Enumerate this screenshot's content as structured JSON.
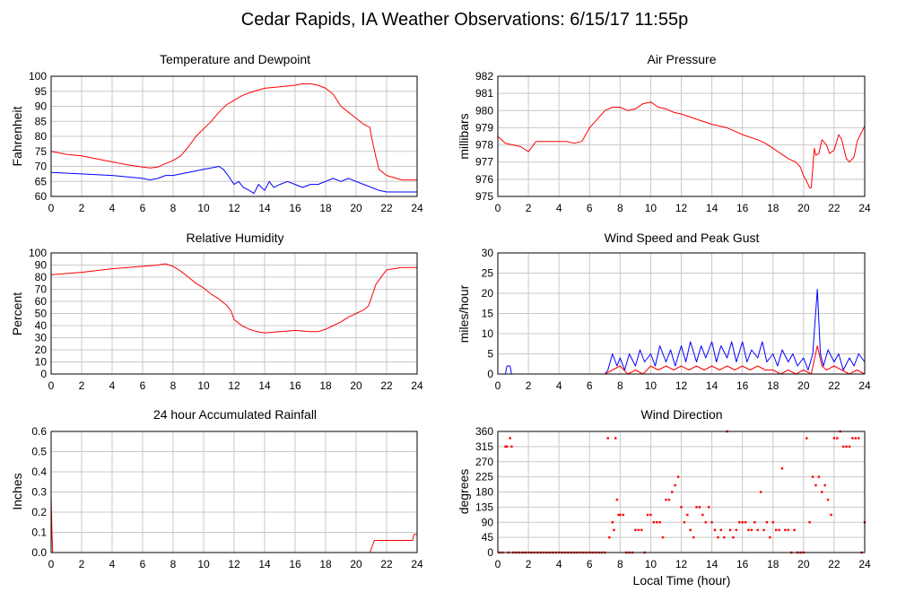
{
  "page_title": "Cedar Rapids, IA Weather Observations: 6/15/17 11:55p",
  "x_axis_label": "Local Time (hour)",
  "chart_data": [
    {
      "id": "temp",
      "type": "line",
      "title": "Temperature and Dewpoint",
      "ylabel": "Fahrenheit",
      "xlabel": "",
      "xlim": [
        0,
        24
      ],
      "ylim": [
        60,
        100
      ],
      "yticks": [
        60,
        65,
        70,
        75,
        80,
        85,
        90,
        95,
        100
      ],
      "xticks": [
        0,
        2,
        4,
        6,
        8,
        10,
        12,
        14,
        16,
        18,
        20,
        22,
        24
      ],
      "grid": true,
      "series": [
        {
          "color": "#ff0000",
          "x": [
            0,
            1,
            2,
            3,
            4,
            5,
            6,
            6.5,
            7,
            8,
            8.5,
            9,
            9.5,
            10,
            10.5,
            11,
            11.5,
            12,
            12.5,
            13,
            14,
            15,
            16,
            16.5,
            17,
            17.5,
            18,
            18.5,
            19,
            19.5,
            20,
            20.5,
            20.9,
            21,
            21.3,
            21.5,
            22,
            23,
            24
          ],
          "values": [
            75,
            74,
            73.5,
            72.5,
            71.5,
            70.5,
            69.8,
            69.5,
            69.8,
            72,
            73.5,
            76.5,
            80,
            82.5,
            85,
            88,
            90.5,
            92,
            93.5,
            94.5,
            96,
            96.5,
            97,
            97.5,
            97.5,
            97,
            96,
            94,
            90,
            88,
            86,
            84,
            83,
            80,
            73,
            69,
            67,
            65.5,
            65.5
          ]
        },
        {
          "color": "#0000ff",
          "x": [
            0,
            2,
            4,
            6,
            6.5,
            7,
            7.5,
            8,
            8.5,
            9,
            9.5,
            10,
            10.5,
            11,
            11.3,
            11.6,
            12,
            12.3,
            12.6,
            13,
            13.3,
            13.6,
            14,
            14.3,
            14.6,
            15,
            15.5,
            16,
            16.5,
            17,
            17.5,
            18,
            18.5,
            19,
            19.5,
            20,
            20.5,
            21,
            21.5,
            22,
            23,
            24
          ],
          "values": [
            68,
            67.5,
            67,
            66,
            65.5,
            66,
            67,
            67,
            67.5,
            68,
            68.5,
            69,
            69.5,
            70,
            69,
            67,
            64,
            65,
            63,
            62,
            61,
            64,
            62,
            65,
            63,
            64,
            65,
            64,
            63,
            64,
            64,
            65,
            66,
            65,
            66,
            65,
            64,
            63,
            62,
            61.5,
            61.5,
            61.5
          ]
        }
      ]
    },
    {
      "id": "pressure",
      "type": "line",
      "title": "Air Pressure",
      "ylabel": "millibars",
      "xlabel": "",
      "xlim": [
        0,
        24
      ],
      "ylim": [
        975,
        982
      ],
      "yticks": [
        975,
        976,
        977,
        978,
        979,
        980,
        981,
        982
      ],
      "xticks": [
        0,
        2,
        4,
        6,
        8,
        10,
        12,
        14,
        16,
        18,
        20,
        22,
        24
      ],
      "grid": true,
      "series": [
        {
          "color": "#ff0000",
          "x": [
            0,
            0.5,
            1,
            1.5,
            2,
            2.5,
            3,
            3.5,
            4,
            4.5,
            5,
            5.5,
            6,
            6.5,
            7,
            7.5,
            8,
            8.5,
            9,
            9.5,
            10,
            10.5,
            11,
            11.5,
            12,
            13,
            14,
            15,
            16,
            17,
            17.5,
            18,
            18.5,
            19,
            19.5,
            19.8,
            20,
            20.2,
            20.4,
            20.5,
            20.7,
            20.8,
            21,
            21.2,
            21.5,
            21.7,
            22,
            22.3,
            22.5,
            22.8,
            23,
            23.3,
            23.5,
            24
          ],
          "values": [
            978.5,
            978.1,
            978,
            977.9,
            977.6,
            978.2,
            978.2,
            978.2,
            978.2,
            978.2,
            978.1,
            978.2,
            979,
            979.5,
            980,
            980.2,
            980.2,
            980,
            980.1,
            980.4,
            980.5,
            980.2,
            980.1,
            979.9,
            979.8,
            979.5,
            979.2,
            979,
            978.6,
            978.3,
            978.1,
            977.8,
            977.5,
            977.2,
            977,
            976.7,
            976.2,
            975.9,
            975.5,
            975.5,
            977.8,
            977.4,
            977.5,
            978.3,
            978,
            977.5,
            977.7,
            978.6,
            978.3,
            977.2,
            977,
            977.3,
            978.2,
            979.1
          ]
        }
      ]
    },
    {
      "id": "humidity",
      "type": "line",
      "title": "Relative Humidity",
      "ylabel": "Percent",
      "xlabel": "",
      "xlim": [
        0,
        24
      ],
      "ylim": [
        0,
        100
      ],
      "yticks": [
        0,
        10,
        20,
        30,
        40,
        50,
        60,
        70,
        80,
        90,
        100
      ],
      "xticks": [
        0,
        2,
        4,
        6,
        8,
        10,
        12,
        14,
        16,
        18,
        20,
        22,
        24
      ],
      "grid": true,
      "series": [
        {
          "color": "#ff0000",
          "x": [
            0,
            2,
            4,
            6,
            7,
            7.5,
            8,
            8.5,
            9,
            9.5,
            10,
            10.5,
            11,
            11.5,
            11.8,
            12,
            12.5,
            13,
            13.5,
            14,
            15,
            16,
            17,
            17.5,
            18,
            18.5,
            19,
            19.5,
            20,
            20.5,
            20.8,
            21,
            21.3,
            21.7,
            22,
            23,
            24
          ],
          "values": [
            82,
            84,
            87,
            89,
            90,
            91,
            89,
            85,
            80,
            75,
            71,
            66,
            62,
            57,
            52,
            45,
            40,
            37,
            35,
            34,
            35,
            36,
            35,
            35,
            37,
            40,
            43,
            47,
            50,
            53,
            56,
            63,
            74,
            81,
            86,
            88,
            88
          ]
        }
      ]
    },
    {
      "id": "wind",
      "type": "line",
      "title": "Wind Speed and Peak Gust",
      "ylabel": "miles/hour",
      "xlabel": "",
      "xlim": [
        0,
        24
      ],
      "ylim": [
        0,
        30
      ],
      "yticks": [
        0,
        5,
        10,
        15,
        20,
        25,
        30
      ],
      "xticks": [
        0,
        2,
        4,
        6,
        8,
        10,
        12,
        14,
        16,
        18,
        20,
        22,
        24
      ],
      "grid": true,
      "series": [
        {
          "color": "#0000ff",
          "x": [
            0,
            0.5,
            0.6,
            0.8,
            0.9,
            7,
            7.2,
            7.5,
            7.8,
            8,
            8.3,
            8.6,
            9,
            9.3,
            9.6,
            10,
            10.3,
            10.6,
            11,
            11.3,
            11.6,
            12,
            12.3,
            12.6,
            13,
            13.3,
            13.6,
            14,
            14.3,
            14.6,
            15,
            15.3,
            15.6,
            16,
            16.3,
            16.6,
            17,
            17.3,
            17.6,
            18,
            18.3,
            18.6,
            19,
            19.3,
            19.6,
            20,
            20.3,
            20.6,
            20.9,
            21.1,
            21.3,
            21.6,
            22,
            22.3,
            22.6,
            23,
            23.3,
            23.6,
            24
          ],
          "values": [
            0,
            0,
            2,
            2,
            0,
            0,
            1,
            5,
            2,
            4,
            1,
            5,
            2,
            6,
            3,
            5,
            2,
            7,
            3,
            6,
            2,
            7,
            3,
            8,
            3,
            7,
            4,
            8,
            3,
            7,
            4,
            8,
            3,
            8,
            3,
            6,
            4,
            8,
            3,
            5,
            2,
            6,
            3,
            5,
            2,
            4,
            1,
            5,
            21,
            5,
            2,
            6,
            3,
            5,
            1,
            4,
            2,
            5,
            3
          ]
        },
        {
          "color": "#ff0000",
          "x": [
            0,
            7,
            7.5,
            8,
            8.5,
            9,
            9.5,
            10,
            10.5,
            11,
            11.5,
            12,
            12.5,
            13,
            13.5,
            14,
            14.5,
            15,
            15.5,
            16,
            16.5,
            17,
            17.5,
            18,
            18.5,
            19,
            19.5,
            20,
            20.5,
            20.9,
            21.2,
            21.5,
            22,
            22.5,
            23,
            23.5,
            24
          ],
          "values": [
            0,
            0,
            1,
            2,
            0,
            1,
            0,
            2,
            1,
            2,
            1,
            2,
            1,
            2,
            1,
            2,
            1,
            2,
            1,
            2,
            1,
            2,
            1,
            1,
            0,
            1,
            0,
            1,
            0,
            7,
            2,
            1,
            2,
            1,
            0,
            1,
            0
          ]
        }
      ]
    },
    {
      "id": "rain",
      "type": "line",
      "title": "24 hour Accumulated Rainfall",
      "ylabel": "Inches",
      "xlabel": "",
      "xlim": [
        0,
        24
      ],
      "ylim": [
        0,
        0.6
      ],
      "yticks": [
        0.0,
        0.1,
        0.2,
        0.3,
        0.4,
        0.5,
        0.6
      ],
      "ytick_labels": [
        "0.0",
        "0.1",
        "0.2",
        "0.3",
        "0.4",
        "0.5",
        "0.6"
      ],
      "xticks": [
        0,
        2,
        4,
        6,
        8,
        10,
        12,
        14,
        16,
        18,
        20,
        22,
        24
      ],
      "grid": true,
      "series": [
        {
          "color": "#ff0000",
          "x": [
            0,
            0.05,
            0.1,
            20.9,
            21.0,
            21.2,
            23.7,
            23.8,
            24
          ],
          "values": [
            0.28,
            0.1,
            0,
            0,
            0.02,
            0.06,
            0.06,
            0.09,
            0.09
          ]
        }
      ]
    },
    {
      "id": "direction",
      "type": "scatter",
      "title": "Wind Direction",
      "ylabel": "degrees",
      "xlabel": "Local Time (hour)",
      "xlim": [
        0,
        24
      ],
      "ylim": [
        0,
        360
      ],
      "yticks": [
        0,
        45,
        90,
        135,
        180,
        225,
        270,
        315,
        360
      ],
      "xticks": [
        0,
        2,
        4,
        6,
        8,
        10,
        12,
        14,
        16,
        18,
        20,
        22,
        24
      ],
      "grid": true,
      "series": [
        {
          "color": "#ff0000",
          "x": [
            0.1,
            0.3,
            0.5,
            0.6,
            0.7,
            0.8,
            0.9,
            1.0,
            1.2,
            1.4,
            1.6,
            1.8,
            2.0,
            2.2,
            2.4,
            2.6,
            2.8,
            3.0,
            3.2,
            3.4,
            3.6,
            3.8,
            4.0,
            4.2,
            4.4,
            4.6,
            4.8,
            5.0,
            5.2,
            5.4,
            5.6,
            5.8,
            6.0,
            6.2,
            6.4,
            6.6,
            6.8,
            7.0,
            7.2,
            7.3,
            7.5,
            7.6,
            7.7,
            7.8,
            7.9,
            8.0,
            8.2,
            8.4,
            8.6,
            8.8,
            9.0,
            9.2,
            9.4,
            9.6,
            9.8,
            10.0,
            10.2,
            10.4,
            10.6,
            10.8,
            11.0,
            11.2,
            11.4,
            11.6,
            11.8,
            12.0,
            12.2,
            12.4,
            12.6,
            12.8,
            13.0,
            13.2,
            13.4,
            13.6,
            13.8,
            14.0,
            14.2,
            14.4,
            14.6,
            14.8,
            15.0,
            15.2,
            15.4,
            15.6,
            15.8,
            16.0,
            16.2,
            16.4,
            16.6,
            16.8,
            17.0,
            17.2,
            17.4,
            17.6,
            17.8,
            18.0,
            18.2,
            18.4,
            18.6,
            18.8,
            19.0,
            19.2,
            19.4,
            19.6,
            19.8,
            20.0,
            20.2,
            20.4,
            20.6,
            20.8,
            21.0,
            21.2,
            21.4,
            21.6,
            21.8,
            22.0,
            22.2,
            22.4,
            22.6,
            22.8,
            23.0,
            23.2,
            23.4,
            23.6,
            23.8,
            24.0
          ],
          "values": [
            0,
            0,
            315,
            315,
            0,
            340,
            315,
            0,
            0,
            0,
            0,
            0,
            0,
            0,
            0,
            0,
            0,
            0,
            0,
            0,
            0,
            0,
            0,
            0,
            0,
            0,
            0,
            0,
            0,
            0,
            0,
            0,
            0,
            0,
            0,
            0,
            0,
            0,
            340,
            45,
            90,
            67,
            340,
            157,
            112,
            112,
            112,
            0,
            0,
            0,
            67,
            67,
            67,
            0,
            112,
            112,
            90,
            90,
            90,
            45,
            157,
            157,
            180,
            200,
            225,
            135,
            90,
            112,
            67,
            45,
            135,
            135,
            112,
            90,
            135,
            90,
            67,
            45,
            67,
            45,
            360,
            67,
            45,
            67,
            90,
            90,
            90,
            67,
            67,
            90,
            67,
            180,
            67,
            90,
            45,
            90,
            67,
            67,
            250,
            67,
            67,
            0,
            67,
            0,
            0,
            0,
            340,
            90,
            225,
            200,
            225,
            180,
            200,
            157,
            112,
            340,
            340,
            360,
            315,
            315,
            315,
            340,
            340,
            340,
            0,
            90
          ]
        }
      ]
    }
  ]
}
